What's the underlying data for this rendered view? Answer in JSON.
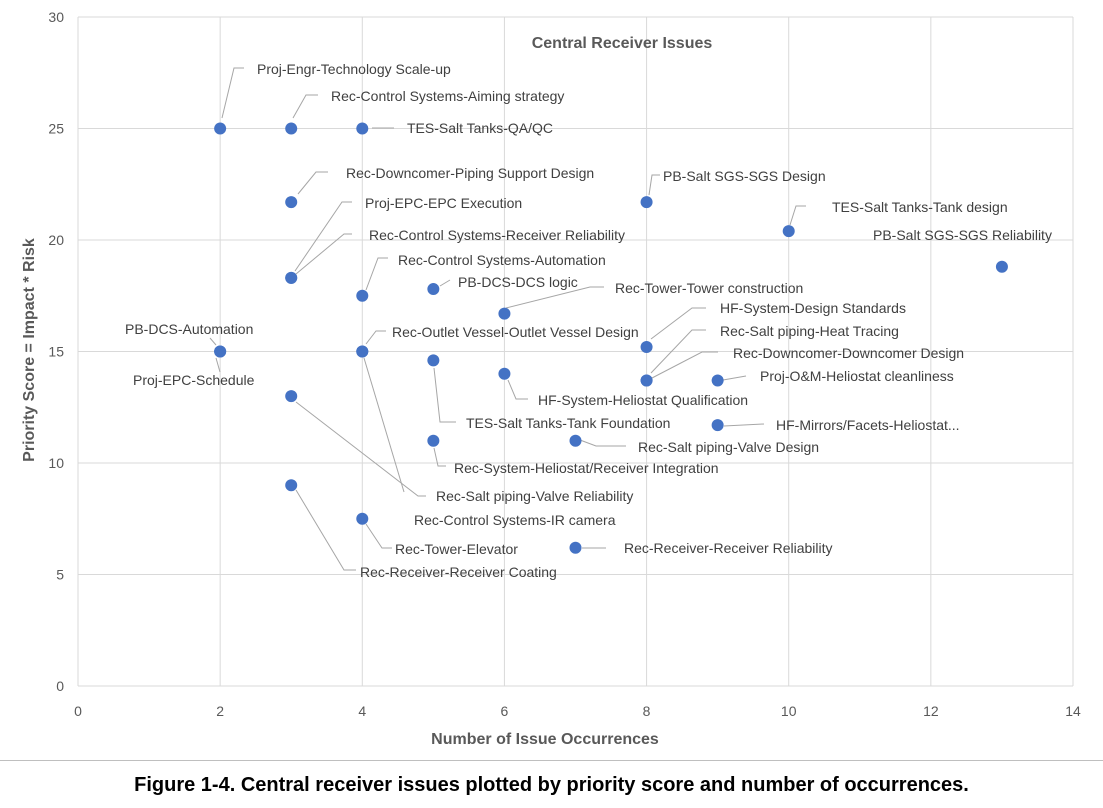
{
  "chart_data": {
    "type": "scatter",
    "title": "Central Receiver Issues",
    "xlabel": "Number of Issue Occurrences",
    "ylabel": "Priority Score = Impact * Risk",
    "xlim": [
      0,
      14
    ],
    "ylim": [
      0,
      30
    ],
    "xticks": [
      0,
      2,
      4,
      6,
      8,
      10,
      12,
      14
    ],
    "yticks": [
      0,
      5,
      10,
      15,
      20,
      25,
      30
    ],
    "grid": true,
    "marker_color": "#4472c4",
    "points": [
      {
        "x": 2,
        "y": 25,
        "label": "Proj-Engr-Technology Scale-up"
      },
      {
        "x": 3,
        "y": 25,
        "label": "Rec-Control Systems-Aiming strategy"
      },
      {
        "x": 4,
        "y": 25,
        "label": "TES-Salt Tanks-QA/QC"
      },
      {
        "x": 3,
        "y": 21.7,
        "label": "Rec-Downcomer-Piping Support Design"
      },
      {
        "x": 3,
        "y": 18.3,
        "label": "Proj-EPC-EPC Execution"
      },
      {
        "x": 3,
        "y": 18.3,
        "label": "Rec-Control Systems-Receiver Reliability"
      },
      {
        "x": 4,
        "y": 17.5,
        "label": "Rec-Control Systems-Automation"
      },
      {
        "x": 5,
        "y": 17.8,
        "label": "PB-DCS-DCS logic"
      },
      {
        "x": 6,
        "y": 16.7,
        "label": "Rec-Tower-Tower construction"
      },
      {
        "x": 8,
        "y": 21.7,
        "label": "PB-Salt SGS-SGS Design"
      },
      {
        "x": 10,
        "y": 20.4,
        "label": "TES-Salt Tanks-Tank design"
      },
      {
        "x": 13,
        "y": 18.8,
        "label": "PB-Salt SGS-SGS Reliability"
      },
      {
        "x": 2,
        "y": 15,
        "label": "PB-DCS-Automation"
      },
      {
        "x": 2,
        "y": 15,
        "label": "Proj-EPC-Schedule"
      },
      {
        "x": 4,
        "y": 15,
        "label": "Rec-Outlet Vessel-Outlet Vessel Design"
      },
      {
        "x": 8,
        "y": 15.2,
        "label": "HF-System-Design Standards"
      },
      {
        "x": 8,
        "y": 13.7,
        "label": "Rec-Salt piping-Heat Tracing"
      },
      {
        "x": 8,
        "y": 13.7,
        "label": "Rec-Downcomer-Downcomer Design"
      },
      {
        "x": 9,
        "y": 13.7,
        "label": "Proj-O&M-Heliostat cleanliness"
      },
      {
        "x": 6,
        "y": 14,
        "label": "HF-System-Heliostat Qualification"
      },
      {
        "x": 5,
        "y": 14.6,
        "label": "TES-Salt Tanks-Tank Foundation"
      },
      {
        "x": 9,
        "y": 11.7,
        "label": "HF-Mirrors/Facets-Heliostat..."
      },
      {
        "x": 7,
        "y": 11,
        "label": "Rec-Salt piping-Valve Design"
      },
      {
        "x": 5,
        "y": 11,
        "label": "Rec-System-Heliostat/Receiver Integration"
      },
      {
        "x": 3,
        "y": 13,
        "label": "Rec-Salt piping-Valve Reliability"
      },
      {
        "x": 4,
        "y": 15,
        "label": "Rec-Control Systems-IR camera"
      },
      {
        "x": 4,
        "y": 7.5,
        "label": "Rec-Tower-Elevator"
      },
      {
        "x": 3,
        "y": 9,
        "label": "Rec-Receiver-Receiver Coating"
      },
      {
        "x": 7,
        "y": 6.2,
        "label": "Rec-Receiver-Receiver Reliability"
      }
    ]
  },
  "caption": "Figure 1-4. Central receiver issues plotted by priority score and number of occurrences."
}
